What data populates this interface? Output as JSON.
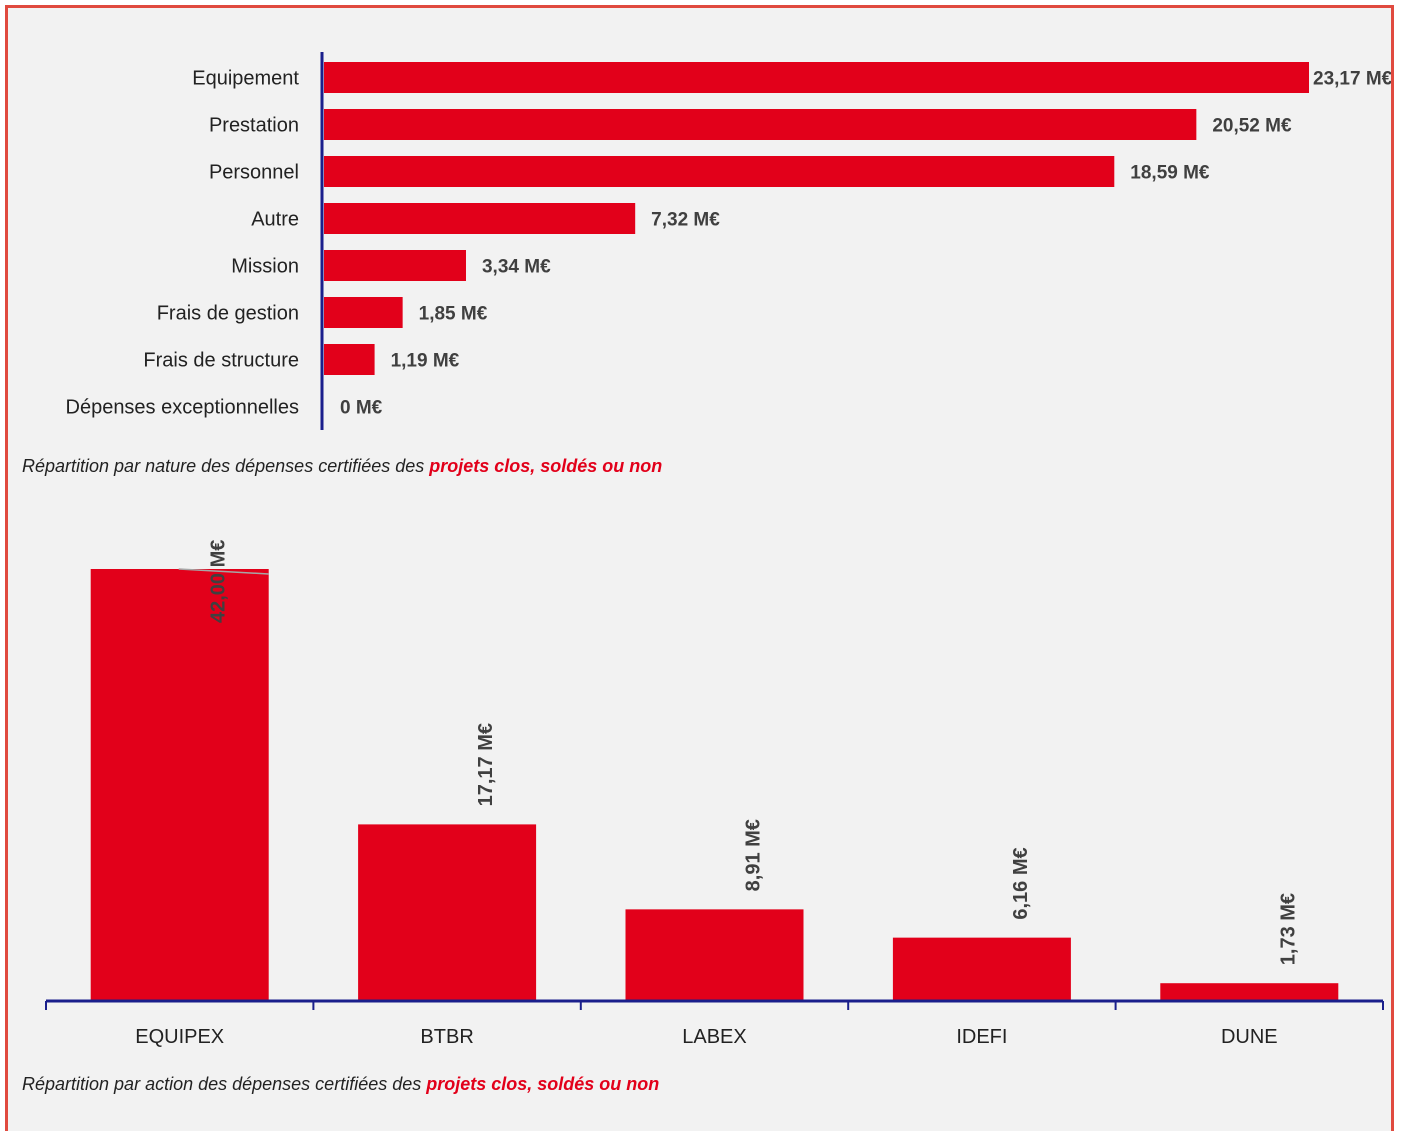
{
  "colors": {
    "bar": "#e2001a",
    "axis": "#1a1f8c",
    "frame": "#e04a3f",
    "background": "#f2f2f2",
    "label_text": "#404040",
    "category_text": "#222222",
    "caption_highlight": "#e2001a"
  },
  "captions": {
    "chart1_prefix": "Répartition par nature des dépenses certifiées des ",
    "chart1_highlight": "projets clos, soldés ou non",
    "chart2_prefix": "Répartition par action des dépenses certifiées des ",
    "chart2_highlight": "projets clos, soldés ou non"
  },
  "chart_data": [
    {
      "type": "bar",
      "orientation": "horizontal",
      "categories": [
        "Equipement",
        "Prestation",
        "Personnel",
        "Autre",
        "Mission",
        "Frais de gestion",
        "Frais de structure",
        "Dépenses exceptionnelles"
      ],
      "values": [
        23.17,
        20.52,
        18.59,
        7.32,
        3.34,
        1.85,
        1.19,
        0
      ],
      "data_labels": [
        "23,17 M€",
        "20,52 M€",
        "18,59 M€",
        "7,32 M€",
        "3,34 M€",
        "1,85 M€",
        "1,19 M€",
        "0 M€"
      ],
      "unit": "M€",
      "xlim": [
        0,
        23.17
      ],
      "grid": false,
      "legend": "none"
    },
    {
      "type": "bar",
      "orientation": "vertical",
      "categories": [
        "EQUIPEX",
        "BTBR",
        "LABEX",
        "IDEFI",
        "DUNE"
      ],
      "values": [
        42.0,
        17.17,
        8.91,
        6.16,
        1.73
      ],
      "data_labels": [
        "42,00 M€",
        "17,17 M€",
        "8,91 M€",
        "6,16 M€",
        "1,73 M€"
      ],
      "unit": "M€",
      "ylim": [
        0,
        42.0
      ],
      "grid": false,
      "legend": "none"
    }
  ]
}
